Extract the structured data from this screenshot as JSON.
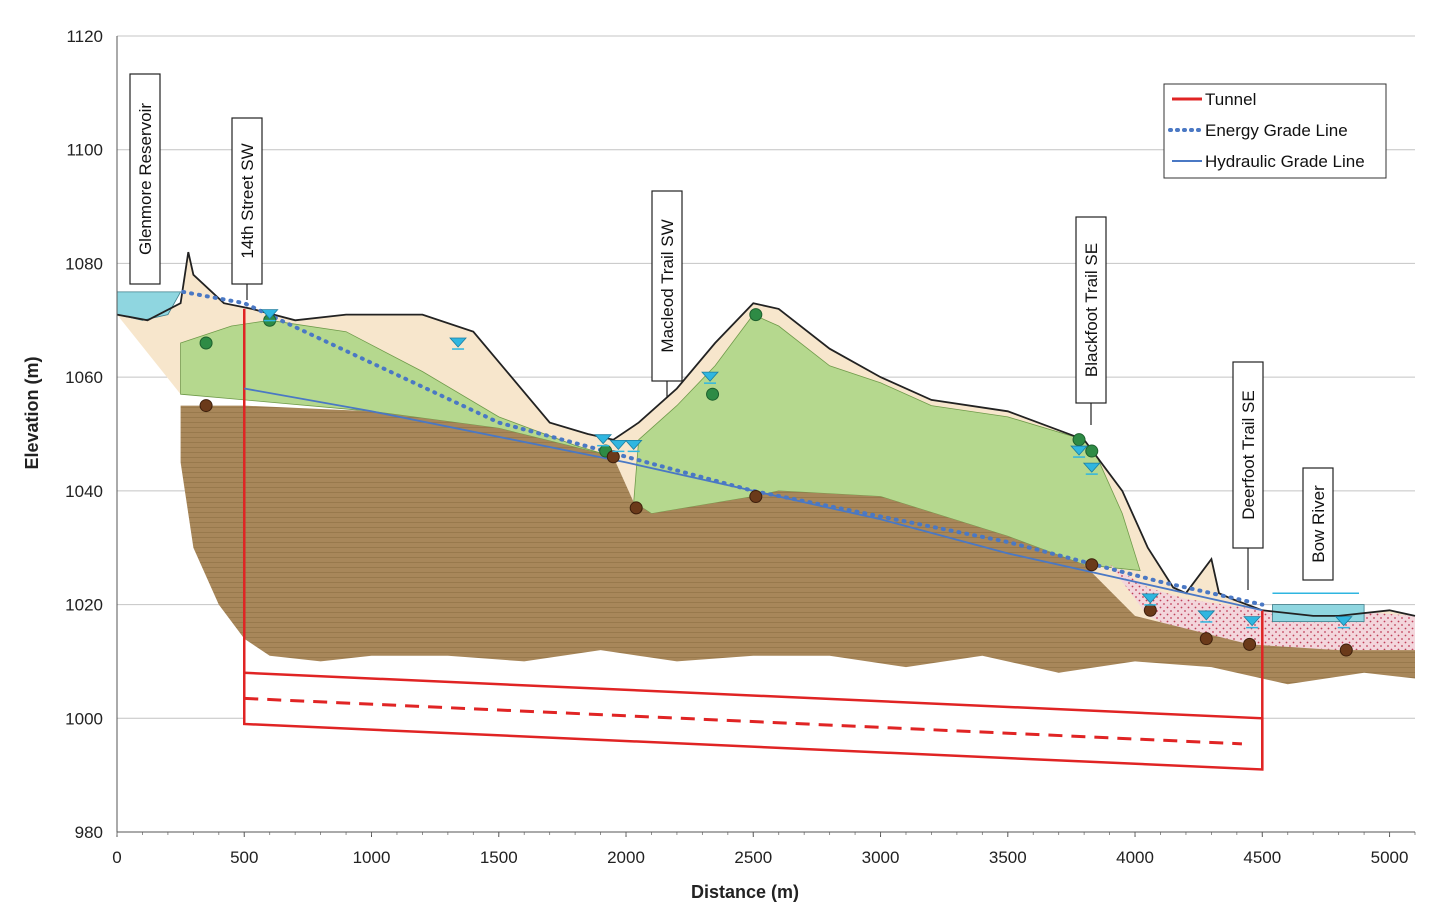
{
  "chart_data": {
    "type": "line",
    "xlabel": "Distance (m)",
    "ylabel": "Elevation (m)",
    "xlim": [
      0,
      5100
    ],
    "ylim": [
      980,
      1120
    ],
    "x_ticks": [
      "0",
      "500",
      "1000",
      "1500",
      "2000",
      "2500",
      "3000",
      "3500",
      "4000",
      "4500",
      "5000"
    ],
    "y_ticks": [
      "980",
      "1000",
      "1020",
      "1040",
      "1060",
      "1080",
      "1100",
      "1120"
    ],
    "grid": "horizontal",
    "legend_position": "top-right",
    "series": [
      {
        "name": "Tunnel",
        "color": "#e02424",
        "style": "solid",
        "x": [
          500,
          4500
        ],
        "y": [
          1000,
          993
        ]
      },
      {
        "name": "Energy Grade Line",
        "color": "#4a78c4",
        "style": "dotted",
        "x": [
          260,
          500,
          1500,
          2500,
          3500,
          4100,
          4500
        ],
        "y": [
          1075,
          1073,
          1052,
          1040,
          1031,
          1024,
          1020
        ]
      },
      {
        "name": "Hydraulic Grade Line",
        "color": "#4a78c4",
        "style": "solid",
        "x": [
          500,
          1000,
          2000,
          2500,
          3000,
          3500,
          4000,
          4500
        ],
        "y": [
          1058,
          1054,
          1045,
          1040,
          1035,
          1029,
          1024,
          1019
        ]
      }
    ],
    "ground_surface": {
      "x": [
        0,
        120,
        250,
        280,
        300,
        420,
        530,
        700,
        900,
        1000,
        1200,
        1400,
        1550,
        1700,
        1850,
        1950,
        2050,
        2200,
        2350,
        2500,
        2600,
        2800,
        3000,
        3200,
        3500,
        3800,
        3950,
        4050,
        4150,
        4200,
        4250,
        4300,
        4330,
        4380,
        4500,
        4700,
        4800,
        5000,
        5100
      ],
      "y": [
        1071,
        1070,
        1073,
        1082,
        1078,
        1073,
        1072,
        1070,
        1071,
        1071,
        1071,
        1068,
        1060,
        1052,
        1050,
        1049,
        1052,
        1058,
        1066,
        1073,
        1072,
        1065,
        1060,
        1056,
        1054,
        1049,
        1040,
        1030,
        1023,
        1022,
        1025,
        1028,
        1022,
        1021,
        1019,
        1018,
        1018,
        1019,
        1018
      ]
    },
    "tunnel_outline": {
      "x": [
        500,
        4500
      ],
      "top": [
        1008,
        1000
      ],
      "bottom": [
        999,
        991
      ],
      "centerline": [
        1003.5,
        995.5
      ]
    },
    "landmarks": [
      {
        "label": "Glenmore Reservoir",
        "x": 110
      },
      {
        "label": "14th Street SW",
        "x": 500
      },
      {
        "label": "Macleod Trail SW",
        "x": 2130
      },
      {
        "label": "Blackfoot Trail SE",
        "x": 3760
      },
      {
        "label": "Deerfoot Trail SE",
        "x": 4350
      },
      {
        "label": "Bow River",
        "x": 4680
      }
    ],
    "water_level_markers": [
      {
        "x": 600,
        "y": 1071
      },
      {
        "x": 1340,
        "y": 1066
      },
      {
        "x": 1910,
        "y": 1049
      },
      {
        "x": 1970,
        "y": 1048
      },
      {
        "x": 2030,
        "y": 1048
      },
      {
        "x": 2330,
        "y": 1060
      },
      {
        "x": 3780,
        "y": 1047
      },
      {
        "x": 3830,
        "y": 1044
      },
      {
        "x": 4060,
        "y": 1021
      },
      {
        "x": 4280,
        "y": 1018
      },
      {
        "x": 4460,
        "y": 1017
      },
      {
        "x": 4820,
        "y": 1017
      }
    ],
    "green_points": [
      {
        "x": 350,
        "y": 1066
      },
      {
        "x": 600,
        "y": 1070
      },
      {
        "x": 1920,
        "y": 1047
      },
      {
        "x": 2340,
        "y": 1057
      },
      {
        "x": 2510,
        "y": 1071
      },
      {
        "x": 3780,
        "y": 1049
      },
      {
        "x": 3830,
        "y": 1047
      }
    ],
    "brown_points": [
      {
        "x": 350,
        "y": 1055
      },
      {
        "x": 1950,
        "y": 1046
      },
      {
        "x": 2040,
        "y": 1037
      },
      {
        "x": 2510,
        "y": 1039
      },
      {
        "x": 3830,
        "y": 1027
      },
      {
        "x": 4060,
        "y": 1019
      },
      {
        "x": 4280,
        "y": 1014
      },
      {
        "x": 4450,
        "y": 1013
      },
      {
        "x": 4830,
        "y": 1012
      }
    ]
  },
  "colors": {
    "tunnel": "#e02424",
    "grade_line": "#4a78c4",
    "bedrock": "#a8875a",
    "till": "#b5d88e",
    "fill_soil": "#f7e6cc",
    "gravel": "#f3d6dc",
    "water": "#8fd6e0",
    "water_marker": "#2fb6e0",
    "green_point": "#2e8b45",
    "brown_point": "#6b3a1a"
  }
}
